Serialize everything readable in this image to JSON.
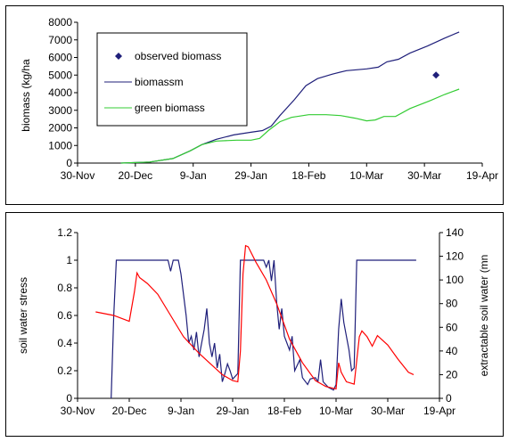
{
  "chart_data": [
    {
      "type": "line",
      "ylabel": "biomass (kg/ha",
      "ylim": [
        0,
        8000
      ],
      "yticks": [
        0,
        1000,
        2000,
        3000,
        4000,
        5000,
        6000,
        7000,
        8000
      ],
      "xlim": [
        "2000-11-30",
        "2001-04-19"
      ],
      "xticks": [
        "30-Nov",
        "20-Dec",
        "9-Jan",
        "29-Jan",
        "18-Feb",
        "10-Mar",
        "30-Mar",
        "19-Apr"
      ],
      "legend": {
        "position": "top-left",
        "entries": [
          "observed biomass",
          "biomassm",
          "green biomass"
        ]
      },
      "series": [
        {
          "name": "observed biomass",
          "kind": "marker",
          "color": "#1f1f7a",
          "points": [
            [
              "2001-04-03",
              5000
            ]
          ]
        },
        {
          "name": "biomassm",
          "kind": "line",
          "color": "#1f1f7a",
          "points": [
            [
              "2000-12-15",
              0
            ],
            [
              "2000-12-25",
              60
            ],
            [
              "2001-01-02",
              260
            ],
            [
              "2001-01-08",
              700
            ],
            [
              "2001-01-12",
              1050
            ],
            [
              "2001-01-17",
              1350
            ],
            [
              "2001-01-23",
              1600
            ],
            [
              "2001-01-29",
              1750
            ],
            [
              "2001-02-02",
              1850
            ],
            [
              "2001-02-05",
              2100
            ],
            [
              "2001-02-08",
              2700
            ],
            [
              "2001-02-13",
              3600
            ],
            [
              "2001-02-17",
              4400
            ],
            [
              "2001-02-21",
              4800
            ],
            [
              "2001-02-26",
              5050
            ],
            [
              "2001-03-03",
              5250
            ],
            [
              "2001-03-10",
              5350
            ],
            [
              "2001-03-14",
              5450
            ],
            [
              "2001-03-17",
              5750
            ],
            [
              "2001-03-21",
              5900
            ],
            [
              "2001-03-25",
              6250
            ],
            [
              "2001-03-31",
              6650
            ],
            [
              "2001-04-06",
              7100
            ],
            [
              "2001-04-11",
              7450
            ]
          ]
        },
        {
          "name": "green biomass",
          "kind": "line",
          "color": "#33cc33",
          "points": [
            [
              "2000-12-15",
              0
            ],
            [
              "2000-12-25",
              60
            ],
            [
              "2001-01-02",
              260
            ],
            [
              "2001-01-08",
              700
            ],
            [
              "2001-01-12",
              1050
            ],
            [
              "2001-01-17",
              1250
            ],
            [
              "2001-01-24",
              1300
            ],
            [
              "2001-01-29",
              1300
            ],
            [
              "2001-02-01",
              1400
            ],
            [
              "2001-02-04",
              1850
            ],
            [
              "2001-02-08",
              2350
            ],
            [
              "2001-02-12",
              2600
            ],
            [
              "2001-02-18",
              2750
            ],
            [
              "2001-02-24",
              2750
            ],
            [
              "2001-03-01",
              2700
            ],
            [
              "2001-03-06",
              2550
            ],
            [
              "2001-03-10",
              2400
            ],
            [
              "2001-03-13",
              2450
            ],
            [
              "2001-03-16",
              2650
            ],
            [
              "2001-03-20",
              2650
            ],
            [
              "2001-03-25",
              3100
            ],
            [
              "2001-04-01",
              3550
            ],
            [
              "2001-04-06",
              3900
            ],
            [
              "2001-04-11",
              4200
            ]
          ]
        }
      ]
    },
    {
      "type": "line",
      "ylabel": "soil water stress",
      "y2label": "extractable soil water (mn",
      "ylim": [
        0,
        1.2
      ],
      "yticks": [
        0,
        0.2,
        0.4,
        0.6,
        0.8,
        1,
        1.2
      ],
      "y2lim": [
        0,
        140
      ],
      "y2ticks": [
        0,
        20,
        40,
        60,
        80,
        100,
        120,
        140
      ],
      "xlim": [
        "2000-11-30",
        "2001-04-19"
      ],
      "xticks": [
        "30-Nov",
        "20-Dec",
        "9-Jan",
        "29-Jan",
        "18-Feb",
        "10-Mar",
        "30-Mar",
        "19-Apr"
      ],
      "series": [
        {
          "kind": "line",
          "axis": "left",
          "color": "#1f1f7a",
          "points": [
            [
              "2000-12-13",
              0
            ],
            [
              "2000-12-14",
              0.6
            ],
            [
              "2000-12-15",
              1
            ],
            [
              "2001-01-02",
              1
            ],
            [
              "2001-01-04",
              1
            ],
            [
              "2001-01-05",
              0.92
            ],
            [
              "2001-01-06",
              1
            ],
            [
              "2001-01-08",
              1
            ],
            [
              "2001-01-09",
              0.9
            ],
            [
              "2001-01-11",
              0.6
            ],
            [
              "2001-01-12",
              0.4
            ],
            [
              "2001-01-13",
              0.45
            ],
            [
              "2001-01-14",
              0.35
            ],
            [
              "2001-01-15",
              0.48
            ],
            [
              "2001-01-16",
              0.3
            ],
            [
              "2001-01-18",
              0.5
            ],
            [
              "2001-01-19",
              0.65
            ],
            [
              "2001-01-20",
              0.4
            ],
            [
              "2001-01-21",
              0.3
            ],
            [
              "2001-01-22",
              0.4
            ],
            [
              "2001-01-23",
              0.22
            ],
            [
              "2001-01-24",
              0.32
            ],
            [
              "2001-01-25",
              0.12
            ],
            [
              "2001-01-26",
              0.18
            ],
            [
              "2001-01-27",
              0.25
            ],
            [
              "2001-01-28",
              0.2
            ],
            [
              "2001-01-29",
              0.14
            ],
            [
              "2001-01-31",
              0.18
            ],
            [
              "2001-02-01",
              1
            ],
            [
              "2001-02-10",
              1
            ],
            [
              "2001-02-11",
              0.95
            ],
            [
              "2001-02-12",
              1
            ],
            [
              "2001-02-13",
              0.85
            ],
            [
              "2001-02-14",
              1
            ],
            [
              "2001-02-15",
              0.7
            ],
            [
              "2001-02-16",
              0.5
            ],
            [
              "2001-02-17",
              0.65
            ],
            [
              "2001-02-18",
              0.45
            ],
            [
              "2001-02-20",
              0.35
            ],
            [
              "2001-02-21",
              0.45
            ],
            [
              "2001-02-22",
              0.2
            ],
            [
              "2001-02-24",
              0.28
            ],
            [
              "2001-02-25",
              0.15
            ],
            [
              "2001-02-27",
              0.1
            ],
            [
              "2001-02-28",
              0.14
            ],
            [
              "2001-03-02",
              0.15
            ],
            [
              "2001-03-03",
              0.12
            ],
            [
              "2001-03-04",
              0.28
            ],
            [
              "2001-03-05",
              0.12
            ],
            [
              "2001-03-07",
              0.08
            ],
            [
              "2001-03-09",
              0.06
            ],
            [
              "2001-03-10",
              0.1
            ],
            [
              "2001-03-11",
              0.5
            ],
            [
              "2001-03-12",
              0.72
            ],
            [
              "2001-03-13",
              0.55
            ],
            [
              "2001-03-14",
              0.45
            ],
            [
              "2001-03-15",
              0.35
            ],
            [
              "2001-03-16",
              0.2
            ],
            [
              "2001-03-17",
              0.22
            ],
            [
              "2001-03-18",
              1
            ],
            [
              "2001-04-10",
              1
            ]
          ]
        },
        {
          "kind": "line",
          "axis": "right",
          "color": "#ff0000",
          "points": [
            [
              "2000-12-07",
              73
            ],
            [
              "2000-12-14",
              70
            ],
            [
              "2000-12-20",
              65
            ],
            [
              "2000-12-22",
              90
            ],
            [
              "2000-12-23",
              106
            ],
            [
              "2000-12-24",
              102
            ],
            [
              "2000-12-27",
              97
            ],
            [
              "2000-12-31",
              88
            ],
            [
              "2001-01-05",
              70
            ],
            [
              "2001-01-10",
              52
            ],
            [
              "2001-01-16",
              38
            ],
            [
              "2001-01-21",
              28
            ],
            [
              "2001-01-25",
              20
            ],
            [
              "2001-01-29",
              15
            ],
            [
              "2001-01-31",
              14
            ],
            [
              "2001-02-01",
              40
            ],
            [
              "2001-02-02",
              105
            ],
            [
              "2001-02-03",
              129
            ],
            [
              "2001-02-04",
              128
            ],
            [
              "2001-02-07",
              115
            ],
            [
              "2001-02-11",
              100
            ],
            [
              "2001-02-15",
              80
            ],
            [
              "2001-02-20",
              50
            ],
            [
              "2001-02-25",
              30
            ],
            [
              "2001-03-02",
              15
            ],
            [
              "2001-03-06",
              10
            ],
            [
              "2001-03-10",
              8
            ],
            [
              "2001-03-11",
              30
            ],
            [
              "2001-03-12",
              22
            ],
            [
              "2001-03-14",
              14
            ],
            [
              "2001-03-17",
              12
            ],
            [
              "2001-03-19",
              52
            ],
            [
              "2001-03-20",
              57
            ],
            [
              "2001-03-22",
              52
            ],
            [
              "2001-03-24",
              44
            ],
            [
              "2001-03-26",
              53
            ],
            [
              "2001-03-30",
              45
            ],
            [
              "2001-04-03",
              33
            ],
            [
              "2001-04-07",
              22
            ],
            [
              "2001-04-09",
              20
            ]
          ]
        }
      ]
    }
  ]
}
